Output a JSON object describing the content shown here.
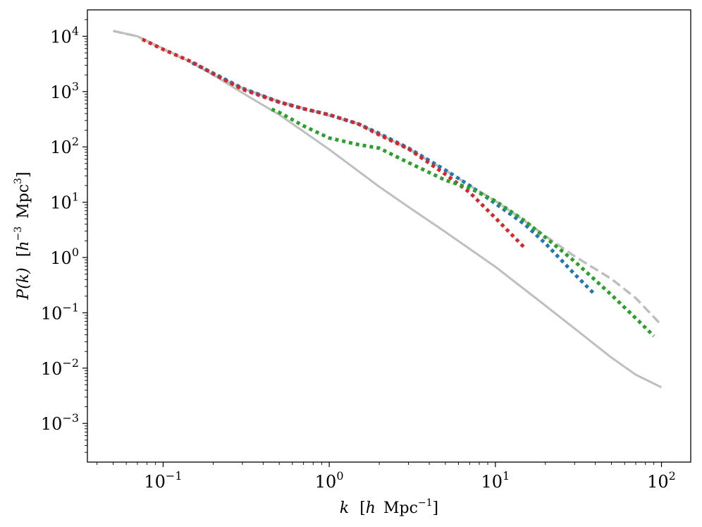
{
  "chart_data": {
    "type": "line",
    "title": "",
    "xlabel": {
      "main": "k",
      "bracket_open": "[",
      "h": "h",
      "unit": "Mpc",
      "exp": "−1",
      "bracket_close": "]"
    },
    "ylabel": {
      "main": "P(k)",
      "bracket_open": "[",
      "h": "h",
      "h_exp": "−3",
      "unit": "Mpc",
      "unit_exp": "3",
      "bracket_close": "]"
    },
    "x_scale": "log",
    "y_scale": "log",
    "xlim": [
      0.035,
      150
    ],
    "ylim": [
      0.0002,
      30000
    ],
    "grid": false,
    "legend": "none",
    "x_ticks": [
      {
        "value": 0.1,
        "base": "10",
        "exp": "−1"
      },
      {
        "value": 1,
        "base": "10",
        "exp": "0"
      },
      {
        "value": 10,
        "base": "10",
        "exp": "1"
      },
      {
        "value": 100,
        "base": "10",
        "exp": "2"
      }
    ],
    "y_ticks": [
      {
        "value": 0.001,
        "base": "10",
        "exp": "−3"
      },
      {
        "value": 0.01,
        "base": "10",
        "exp": "−2"
      },
      {
        "value": 0.1,
        "base": "10",
        "exp": "−1"
      },
      {
        "value": 1,
        "base": "10",
        "exp": "0"
      },
      {
        "value": 10,
        "base": "10",
        "exp": "1"
      },
      {
        "value": 100,
        "base": "10",
        "exp": "2"
      },
      {
        "value": 1000,
        "base": "10",
        "exp": "3"
      },
      {
        "value": 10000,
        "base": "10",
        "exp": "4"
      }
    ],
    "series": [
      {
        "style": "solid",
        "color": "#bfbfbf",
        "x": [
          0.05,
          0.07,
          0.1,
          0.15,
          0.2,
          0.3,
          0.5,
          0.7,
          1,
          2,
          3,
          5,
          10,
          20,
          30,
          50,
          70,
          100
        ],
        "y": [
          12500,
          10000,
          6000,
          3300,
          2000,
          950,
          380,
          190,
          90,
          19,
          8.2,
          2.9,
          0.68,
          0.135,
          0.052,
          0.0155,
          0.0076,
          0.0045
        ]
      },
      {
        "style": "dashed",
        "color": "#bfbfbf",
        "x": [
          0.05,
          0.07,
          0.1,
          0.15,
          0.2,
          0.3,
          0.5,
          0.7,
          1,
          1.5,
          2,
          3,
          5,
          7,
          10,
          15,
          20,
          30,
          50,
          70,
          100
        ],
        "y": [
          12500,
          10000,
          5800,
          3300,
          2000,
          1150,
          660,
          500,
          370,
          260,
          170,
          92,
          38,
          20,
          10.5,
          4.6,
          2.45,
          1.05,
          0.41,
          0.185,
          0.06
        ]
      },
      {
        "style": "dotted",
        "color": "#1f77b4",
        "x": [
          0.15,
          0.2,
          0.3,
          0.5,
          0.7,
          1,
          1.5,
          2,
          3,
          5,
          7,
          10,
          15,
          20,
          30,
          40
        ],
        "y": [
          3300,
          2150,
          1150,
          650,
          490,
          380,
          260,
          175,
          95,
          38,
          20,
          9.5,
          4,
          1.8,
          0.5,
          0.21
        ]
      },
      {
        "style": "dotted",
        "color": "#d62728",
        "x": [
          0.075,
          0.1,
          0.15,
          0.2,
          0.3,
          0.5,
          0.7,
          1,
          1.5,
          2,
          3,
          5,
          7,
          10,
          15
        ],
        "y": [
          8800,
          5800,
          3400,
          2100,
          1100,
          640,
          490,
          380,
          260,
          165,
          92,
          32,
          15,
          5.2,
          1.5
        ]
      },
      {
        "style": "dotted",
        "color": "#2ca02c",
        "x": [
          0.45,
          0.5,
          0.7,
          1,
          1.5,
          2,
          3,
          5,
          7,
          10,
          15,
          20,
          30,
          50,
          70,
          90
        ],
        "y": [
          480,
          420,
          240,
          145,
          110,
          95,
          52,
          25,
          18,
          10.5,
          4.6,
          2.3,
          0.85,
          0.21,
          0.08,
          0.038
        ]
      }
    ]
  }
}
